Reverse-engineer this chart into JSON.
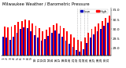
{
  "title": "Milwaukee Weather / Barometric Pressure",
  "legend_high": "High",
  "legend_low": "Low",
  "color_high": "#ff0000",
  "color_low": "#0000bb",
  "background_color": "#ffffff",
  "ylim": [
    28.6,
    31.1
  ],
  "yticks": [
    29.0,
    29.5,
    30.0,
    30.5,
    31.0
  ],
  "days": [
    1,
    2,
    3,
    4,
    5,
    6,
    7,
    8,
    9,
    10,
    11,
    12,
    13,
    14,
    15,
    16,
    17,
    18,
    19,
    20,
    21,
    22,
    23,
    24,
    25,
    26,
    27,
    28,
    29,
    30,
    31
  ],
  "highs": [
    30.12,
    30.08,
    30.15,
    30.22,
    30.38,
    30.42,
    30.5,
    30.48,
    30.3,
    30.18,
    30.05,
    29.88,
    29.95,
    30.1,
    30.22,
    30.3,
    30.18,
    30.05,
    29.9,
    29.72,
    29.55,
    29.45,
    29.35,
    29.55,
    29.8,
    30.02,
    30.15,
    30.28,
    30.42,
    30.58,
    30.72
  ],
  "lows": [
    29.6,
    29.55,
    29.45,
    29.6,
    29.82,
    30.0,
    30.1,
    30.05,
    29.88,
    29.7,
    29.55,
    29.38,
    29.48,
    29.65,
    29.8,
    29.92,
    29.78,
    29.6,
    29.4,
    29.22,
    29.05,
    28.9,
    28.82,
    28.95,
    29.28,
    29.55,
    29.72,
    29.88,
    30.02,
    30.18,
    30.32
  ],
  "dotted_vlines_idx": [
    21,
    22,
    23,
    24
  ],
  "bar_width": 0.42,
  "tick_fontsize": 3.2,
  "title_fontsize": 3.8,
  "legend_fontsize": 3.0
}
